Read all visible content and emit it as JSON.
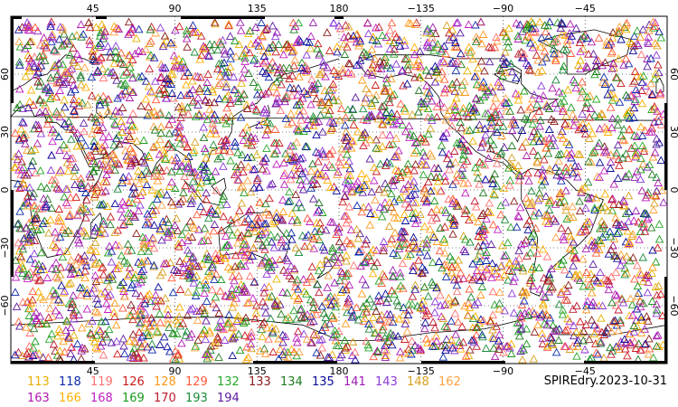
{
  "map": {
    "projection": "cylindrical-equidistant",
    "lon_center": 180,
    "lat_range": [
      -90,
      90
    ],
    "top_axis_labels": [
      "45",
      "90",
      "135",
      "180",
      "−135",
      "−90",
      "−45"
    ],
    "bottom_axis_labels": [
      "45",
      "90",
      "135",
      "180",
      "−135",
      "−90",
      "−45"
    ],
    "left_axis_labels": [
      "60",
      "30",
      "0",
      "−30",
      "−60"
    ],
    "right_axis_labels": [
      "60",
      "30",
      "0",
      "−30",
      "−60"
    ],
    "marker": "triangle-open",
    "marker_density": "dense-global",
    "gridlines": "dotted"
  },
  "legend": {
    "row1": [
      {
        "label": "113",
        "color": "#e8b000"
      },
      {
        "label": "118",
        "color": "#0a2aa8"
      },
      {
        "label": "119",
        "color": "#ff7070"
      },
      {
        "label": "126",
        "color": "#cc1b1b"
      },
      {
        "label": "128",
        "color": "#ff9a1a"
      },
      {
        "label": "129",
        "color": "#ff5a3a"
      },
      {
        "label": "132",
        "color": "#2aa82a"
      },
      {
        "label": "133",
        "color": "#8b1b1b"
      },
      {
        "label": "134",
        "color": "#1f7a1f"
      },
      {
        "label": "135",
        "color": "#0a0a9a"
      },
      {
        "label": "141",
        "color": "#9a1ab0"
      },
      {
        "label": "143",
        "color": "#8c3ad8"
      },
      {
        "label": "148",
        "color": "#d8a020"
      },
      {
        "label": "162",
        "color": "#ffa040"
      }
    ],
    "row2": [
      {
        "label": "163",
        "color": "#b01ab0"
      },
      {
        "label": "166",
        "color": "#ffb000"
      },
      {
        "label": "168",
        "color": "#c020c0"
      },
      {
        "label": "169",
        "color": "#1a9a1a"
      },
      {
        "label": "170",
        "color": "#c01a30"
      },
      {
        "label": "193",
        "color": "#1a8a3a"
      },
      {
        "label": "194",
        "color": "#5a1aa0"
      }
    ]
  },
  "dataset_label": "SPIREdry.2023-10-31"
}
